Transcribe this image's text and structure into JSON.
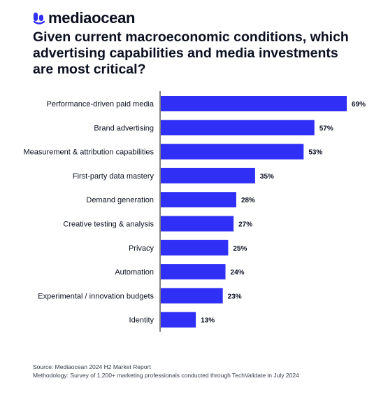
{
  "brand": {
    "name": "mediaocean",
    "logo_icon": "mediaocean-logo-icon",
    "accent_color": "#2f2ff5"
  },
  "title": "Given current macroeconomic conditions, which advertising capabilities and media investments are most critical?",
  "chart_data": {
    "type": "bar",
    "orientation": "horizontal",
    "categories": [
      "Performance-driven paid media",
      "Brand advertising",
      "Measurement & attribution capabilities",
      "First-party data mastery",
      "Demand generation",
      "Creative testing & analysis",
      "Privacy",
      "Automation",
      "Experimental / innovation budgets",
      "Identity"
    ],
    "values": [
      69,
      57,
      53,
      35,
      28,
      27,
      25,
      24,
      23,
      13
    ],
    "value_labels": [
      "69%",
      "57%",
      "53%",
      "35%",
      "28%",
      "27%",
      "25%",
      "24%",
      "23%",
      "13%"
    ],
    "unit": "%",
    "xlim": [
      0,
      69
    ],
    "bar_color": "#2f2ff5",
    "axis_color": "#000000",
    "grid": false,
    "legend": "none"
  },
  "footer": {
    "source": "Source: Mediaocean 2024 H2 Market Report",
    "methodology": "Methodology: Survey of 1,200+ marketing professionals conducted through TechValidate in July 2024"
  }
}
